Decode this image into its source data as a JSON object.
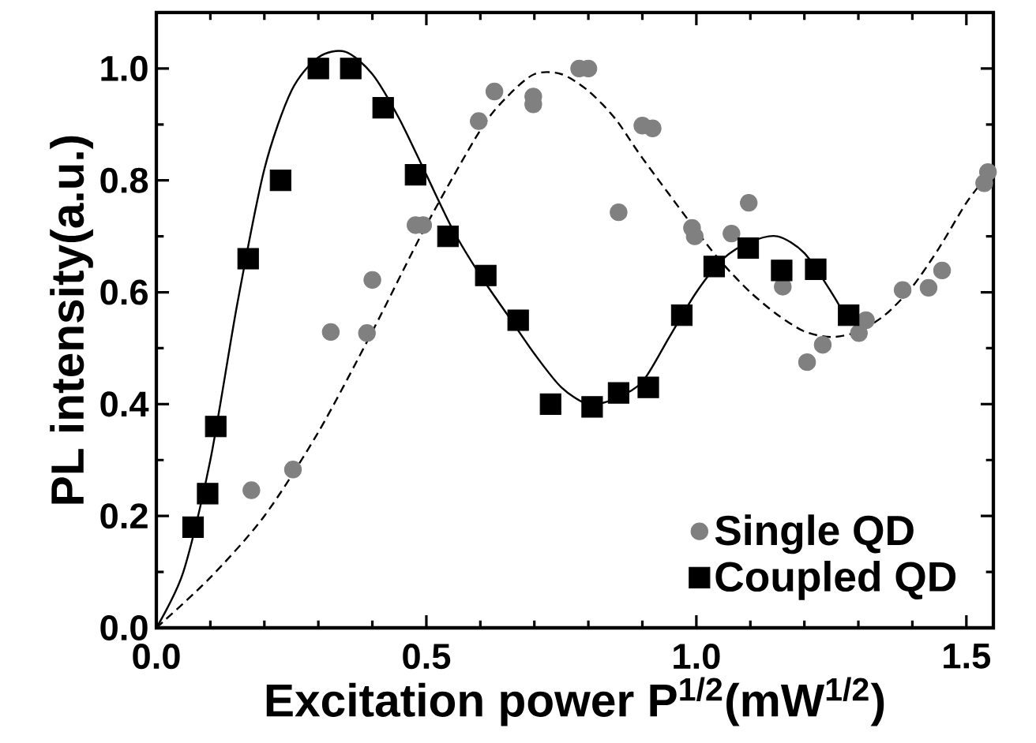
{
  "chart_data": {
    "type": "scatter",
    "xlabel": "Excitation power  P$^{1/2}$(mW$^{1/2}$)",
    "ylabel": "PL intensity(a.u.)",
    "xlim": [
      0,
      1.55
    ],
    "ylim": [
      0,
      1.1
    ],
    "xticks": [
      {
        "value": 0,
        "label": "0.0"
      },
      {
        "value": 0.5,
        "label": "0.5"
      },
      {
        "value": 1.0,
        "label": "1.0"
      },
      {
        "value": 1.5,
        "label": "1.5"
      }
    ],
    "yticks": [
      {
        "value": 0,
        "label": "0.0"
      },
      {
        "value": 0.2,
        "label": "0.2"
      },
      {
        "value": 0.4,
        "label": "0.4"
      },
      {
        "value": 0.6,
        "label": "0.6"
      },
      {
        "value": 0.8,
        "label": "0.8"
      },
      {
        "value": 1.0,
        "label": "1.0"
      }
    ],
    "legend": "bottom right",
    "grid": false,
    "series": [
      {
        "name": "Single QD",
        "marker": "circle",
        "color": "#808080",
        "x": [
          0.176,
          0.253,
          0.323,
          0.39,
          0.4,
          0.48,
          0.494,
          0.597,
          0.626,
          0.698,
          0.698,
          0.783,
          0.8,
          0.856,
          0.9,
          0.919,
          0.992,
          0.997,
          1.065,
          1.097,
          1.16,
          1.205,
          1.234,
          1.301,
          1.314,
          1.382,
          1.43,
          1.455,
          1.533,
          1.54
        ],
        "values": [
          0.246,
          0.283,
          0.529,
          0.527,
          0.622,
          0.72,
          0.72,
          0.906,
          0.959,
          0.95,
          0.936,
          1.0,
          1.0,
          0.743,
          0.898,
          0.893,
          0.715,
          0.7,
          0.705,
          0.76,
          0.61,
          0.475,
          0.506,
          0.527,
          0.55,
          0.604,
          0.608,
          0.639,
          0.795,
          0.815
        ]
      },
      {
        "name": "Coupled QD",
        "marker": "square",
        "color": "#000000",
        "x": [
          0.068,
          0.095,
          0.11,
          0.17,
          0.23,
          0.3,
          0.36,
          0.42,
          0.48,
          0.54,
          0.61,
          0.67,
          0.73,
          0.807,
          0.856,
          0.911,
          0.973,
          1.033,
          1.096,
          1.158,
          1.221,
          1.282
        ],
        "values": [
          0.18,
          0.24,
          0.36,
          0.66,
          0.8,
          1.0,
          1.0,
          0.93,
          0.81,
          0.7,
          0.63,
          0.55,
          0.4,
          0.395,
          0.42,
          0.43,
          0.559,
          0.646,
          0.679,
          0.639,
          0.641,
          0.559
        ]
      },
      {
        "type": "line",
        "marker": "none",
        "line_style": "solid",
        "color": "#000000",
        "x": [
          0,
          0.05,
          0.1,
          0.15,
          0.2,
          0.25,
          0.3,
          0.35,
          0.4,
          0.45,
          0.5,
          0.55,
          0.6,
          0.65,
          0.7,
          0.75,
          0.8,
          0.85,
          0.9,
          0.95,
          1.0,
          1.05,
          1.1,
          1.15,
          1.2,
          1.25,
          1.28
        ],
        "values": [
          0,
          0.1,
          0.3,
          0.58,
          0.82,
          0.96,
          1.02,
          1.03,
          0.99,
          0.91,
          0.81,
          0.71,
          0.63,
          0.56,
          0.49,
          0.43,
          0.4,
          0.41,
          0.44,
          0.52,
          0.6,
          0.66,
          0.69,
          0.7,
          0.67,
          0.6,
          0.55
        ]
      },
      {
        "type": "line",
        "marker": "none",
        "line_style": "dashed",
        "color": "#000000",
        "x": [
          0,
          0.1,
          0.2,
          0.3,
          0.4,
          0.5,
          0.6,
          0.65,
          0.7,
          0.75,
          0.8,
          0.85,
          0.9,
          1.0,
          1.05,
          1.1,
          1.15,
          1.2,
          1.25,
          1.3,
          1.35,
          1.4,
          1.45,
          1.5,
          1.54
        ],
        "values": [
          0,
          0.09,
          0.2,
          0.35,
          0.53,
          0.72,
          0.89,
          0.95,
          0.99,
          0.99,
          0.96,
          0.91,
          0.84,
          0.71,
          0.65,
          0.6,
          0.56,
          0.53,
          0.52,
          0.53,
          0.56,
          0.61,
          0.68,
          0.76,
          0.81
        ]
      }
    ]
  }
}
